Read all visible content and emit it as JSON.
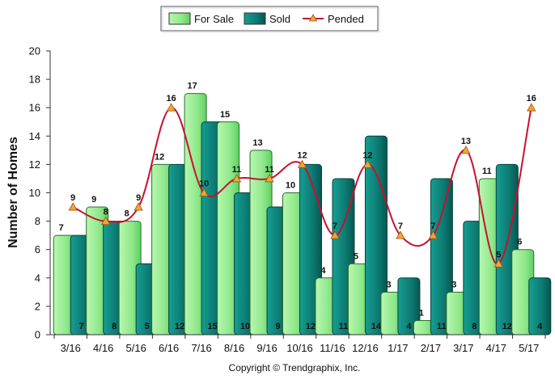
{
  "chart_data": {
    "type": "bar",
    "title": "",
    "xlabel": "",
    "ylabel": "Number of Homes",
    "ylim": [
      0,
      20
    ],
    "yticks": [
      0,
      2,
      4,
      6,
      8,
      10,
      12,
      14,
      16,
      18,
      20
    ],
    "categories": [
      "3/16",
      "4/16",
      "5/16",
      "6/16",
      "7/16",
      "8/16",
      "9/16",
      "10/16",
      "11/16",
      "12/16",
      "1/17",
      "2/17",
      "3/17",
      "4/17",
      "5/17"
    ],
    "series": [
      {
        "name": "For Sale",
        "kind": "bar",
        "color": "#90ee90",
        "values": [
          7,
          9,
          8,
          12,
          17,
          15,
          13,
          10,
          4,
          5,
          3,
          1,
          3,
          11,
          6
        ]
      },
      {
        "name": "Sold",
        "kind": "bar",
        "color": "#0c7a72",
        "values": [
          7,
          8,
          5,
          12,
          15,
          10,
          9,
          12,
          11,
          14,
          4,
          11,
          8,
          12,
          4
        ]
      },
      {
        "name": "Pended",
        "kind": "line",
        "color": "#c8102e",
        "marker_color": "#f2a23a",
        "values": [
          9,
          8,
          9,
          16,
          10,
          11,
          11,
          12,
          7,
          12,
          7,
          7,
          13,
          5,
          16
        ]
      }
    ],
    "legend_position": "top-center",
    "grid": false
  },
  "footer": {
    "copyright": "Copyright © Trendgraphix, Inc."
  }
}
